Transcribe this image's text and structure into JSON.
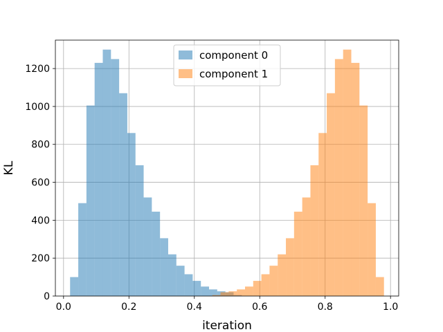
{
  "chart_data": {
    "type": "histogram",
    "xlabel": "iteration",
    "ylabel": "KL",
    "xlim": [
      -0.025,
      1.025
    ],
    "ylim": [
      0,
      1350
    ],
    "xticks": [
      0.0,
      0.2,
      0.4,
      0.6,
      0.8,
      1.0
    ],
    "xtick_labels": [
      "0.0",
      "0.2",
      "0.4",
      "0.6",
      "0.8",
      "1.0"
    ],
    "yticks": [
      0,
      200,
      400,
      600,
      800,
      1000,
      1200
    ],
    "ytick_labels": [
      "0",
      "200",
      "400",
      "600",
      "800",
      "1000",
      "1200"
    ],
    "grid": true,
    "legend_position": "top-center",
    "series": [
      {
        "name": "component 0",
        "color": "#1f77b4",
        "opacity": 0.5,
        "bin_edges": [
          0.02,
          0.045,
          0.07,
          0.095,
          0.12,
          0.145,
          0.17,
          0.195,
          0.22,
          0.245,
          0.27,
          0.295,
          0.32,
          0.345,
          0.37,
          0.395,
          0.42,
          0.445,
          0.47,
          0.495,
          0.52,
          0.545
        ],
        "counts": [
          100,
          490,
          1005,
          1230,
          1300,
          1250,
          1070,
          860,
          690,
          520,
          445,
          305,
          220,
          160,
          115,
          80,
          50,
          35,
          25,
          20,
          5
        ]
      },
      {
        "name": "component 1",
        "color": "#ff7f0e",
        "opacity": 0.5,
        "bin_edges": [
          0.455,
          0.48,
          0.505,
          0.53,
          0.555,
          0.58,
          0.605,
          0.63,
          0.655,
          0.68,
          0.705,
          0.73,
          0.755,
          0.78,
          0.805,
          0.83,
          0.855,
          0.88,
          0.905,
          0.93,
          0.955,
          0.98
        ],
        "counts": [
          5,
          20,
          25,
          35,
          50,
          80,
          115,
          160,
          220,
          305,
          445,
          520,
          690,
          860,
          1070,
          1250,
          1300,
          1230,
          1005,
          490,
          100
        ]
      }
    ]
  }
}
